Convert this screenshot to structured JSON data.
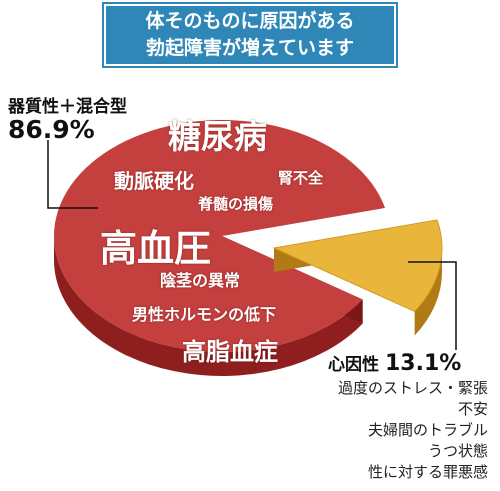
{
  "header": {
    "line1": "体そのものに原因がある",
    "line2": "勃起障害が増えています"
  },
  "colors": {
    "banner": "#2f87b7",
    "organic_top": "#c4403e",
    "organic_side": "#8e1f1e",
    "psychogenic_top": "#e9b53a",
    "psychogenic_side": "#b07a14"
  },
  "chart_data": {
    "type": "pie",
    "slices": [
      {
        "name": "器質性＋混合型",
        "value": 86.9,
        "value_label": "86.9%",
        "causes": [
          "糖尿病",
          "動脈硬化",
          "腎不全",
          "脊髄の損傷",
          "高血圧",
          "陰茎の異常",
          "男性ホルモンの低下",
          "高脂血症"
        ]
      },
      {
        "name": "心因性",
        "value": 13.1,
        "value_label": "13.1%",
        "causes": [
          "過度のストレス・緊張",
          "不安",
          "夫婦間のトラブル",
          "うつ状態",
          "性に対する罪悪感"
        ]
      }
    ]
  }
}
